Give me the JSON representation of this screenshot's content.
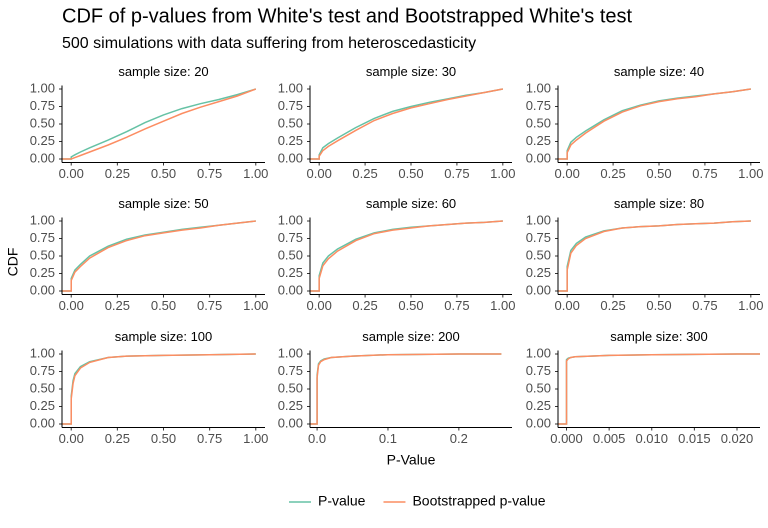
{
  "figure": {
    "title": "CDF of p-values from White's test and Bootstrapped White's test",
    "subtitle": "500 simulations with data suffering from heteroscedasticity",
    "xlabel": "P-Value",
    "ylabel": "CDF"
  },
  "chart_data": [
    {
      "type": "line",
      "title": "sample size: 20",
      "x": [
        -0.05,
        0,
        0,
        0.02,
        0.05,
        0.1,
        0.2,
        0.3,
        0.4,
        0.5,
        0.6,
        0.7,
        0.8,
        0.9,
        1.0
      ],
      "series": [
        {
          "name": "P-value",
          "color": "#66c2a5",
          "values": [
            0,
            0,
            0.03,
            0.06,
            0.1,
            0.16,
            0.27,
            0.39,
            0.52,
            0.63,
            0.72,
            0.79,
            0.85,
            0.92,
            1.0
          ]
        },
        {
          "name": "Bootstrapped p-value",
          "color": "#fc8d62",
          "values": [
            0,
            0,
            0.0,
            0.02,
            0.05,
            0.1,
            0.2,
            0.31,
            0.43,
            0.54,
            0.65,
            0.74,
            0.82,
            0.9,
            1.0
          ]
        }
      ],
      "xlim": [
        -0.05,
        1.05
      ],
      "ylim": [
        -0.05,
        1.05
      ],
      "xticks": [
        {
          "value": 0,
          "label": "0.00"
        },
        {
          "value": 0.25,
          "label": "0.25"
        },
        {
          "value": 0.5,
          "label": "0.50"
        },
        {
          "value": 0.75,
          "label": "0.75"
        },
        {
          "value": 1,
          "label": "1.00"
        }
      ],
      "yticks": [
        {
          "value": 0,
          "label": "0.00"
        },
        {
          "value": 0.25,
          "label": "0.25"
        },
        {
          "value": 0.5,
          "label": "0.50"
        },
        {
          "value": 0.75,
          "label": "0.75"
        },
        {
          "value": 1,
          "label": "1.00"
        }
      ]
    },
    {
      "type": "line",
      "title": "sample size: 30",
      "x": [
        -0.05,
        0,
        0,
        0.02,
        0.05,
        0.1,
        0.2,
        0.3,
        0.4,
        0.5,
        0.6,
        0.7,
        0.8,
        0.9,
        1.0
      ],
      "series": [
        {
          "name": "P-value",
          "color": "#66c2a5",
          "values": [
            0,
            0,
            0.06,
            0.16,
            0.22,
            0.3,
            0.45,
            0.58,
            0.68,
            0.75,
            0.81,
            0.86,
            0.91,
            0.95,
            1.0
          ]
        },
        {
          "name": "Bootstrapped p-value",
          "color": "#fc8d62",
          "values": [
            0,
            0,
            0.04,
            0.12,
            0.18,
            0.26,
            0.41,
            0.55,
            0.65,
            0.73,
            0.79,
            0.85,
            0.9,
            0.95,
            1.0
          ]
        }
      ],
      "xlim": [
        -0.05,
        1.05
      ],
      "ylim": [
        -0.05,
        1.05
      ],
      "xticks": [
        {
          "value": 0,
          "label": "0.00"
        },
        {
          "value": 0.25,
          "label": "0.25"
        },
        {
          "value": 0.5,
          "label": "0.50"
        },
        {
          "value": 0.75,
          "label": "0.75"
        },
        {
          "value": 1,
          "label": "1.00"
        }
      ],
      "yticks": [
        {
          "value": 0,
          "label": "0.00"
        },
        {
          "value": 0.25,
          "label": "0.25"
        },
        {
          "value": 0.5,
          "label": "0.50"
        },
        {
          "value": 0.75,
          "label": "0.75"
        },
        {
          "value": 1,
          "label": "1.00"
        }
      ]
    },
    {
      "type": "line",
      "title": "sample size: 40",
      "x": [
        -0.05,
        0,
        0,
        0.02,
        0.05,
        0.1,
        0.2,
        0.3,
        0.4,
        0.5,
        0.6,
        0.7,
        0.8,
        0.9,
        1.0
      ],
      "series": [
        {
          "name": "P-value",
          "color": "#66c2a5",
          "values": [
            0,
            0,
            0.12,
            0.24,
            0.31,
            0.4,
            0.56,
            0.69,
            0.77,
            0.83,
            0.87,
            0.9,
            0.93,
            0.96,
            1.0
          ]
        },
        {
          "name": "Bootstrapped p-value",
          "color": "#fc8d62",
          "values": [
            0,
            0,
            0.09,
            0.2,
            0.27,
            0.37,
            0.54,
            0.67,
            0.76,
            0.82,
            0.86,
            0.89,
            0.93,
            0.96,
            1.0
          ]
        }
      ],
      "xlim": [
        -0.05,
        1.05
      ],
      "ylim": [
        -0.05,
        1.05
      ],
      "xticks": [
        {
          "value": 0,
          "label": "0.00"
        },
        {
          "value": 0.25,
          "label": "0.25"
        },
        {
          "value": 0.5,
          "label": "0.50"
        },
        {
          "value": 0.75,
          "label": "0.75"
        },
        {
          "value": 1,
          "label": "1.00"
        }
      ],
      "yticks": [
        {
          "value": 0,
          "label": "0.00"
        },
        {
          "value": 0.25,
          "label": "0.25"
        },
        {
          "value": 0.5,
          "label": "0.50"
        },
        {
          "value": 0.75,
          "label": "0.75"
        },
        {
          "value": 1,
          "label": "1.00"
        }
      ]
    },
    {
      "type": "line",
      "title": "sample size: 50",
      "x": [
        -0.05,
        0,
        0,
        0.02,
        0.05,
        0.1,
        0.2,
        0.3,
        0.4,
        0.5,
        0.6,
        0.7,
        0.8,
        0.9,
        1.0
      ],
      "series": [
        {
          "name": "P-value",
          "color": "#66c2a5",
          "values": [
            0,
            0,
            0.18,
            0.3,
            0.38,
            0.5,
            0.64,
            0.74,
            0.8,
            0.84,
            0.88,
            0.91,
            0.94,
            0.97,
            1.0
          ]
        },
        {
          "name": "Bootstrapped p-value",
          "color": "#fc8d62",
          "values": [
            0,
            0,
            0.15,
            0.27,
            0.35,
            0.47,
            0.62,
            0.72,
            0.79,
            0.83,
            0.87,
            0.9,
            0.94,
            0.97,
            1.0
          ]
        }
      ],
      "xlim": [
        -0.05,
        1.05
      ],
      "ylim": [
        -0.05,
        1.05
      ],
      "xticks": [
        {
          "value": 0,
          "label": "0.00"
        },
        {
          "value": 0.25,
          "label": "0.25"
        },
        {
          "value": 0.5,
          "label": "0.50"
        },
        {
          "value": 0.75,
          "label": "0.75"
        },
        {
          "value": 1,
          "label": "1.00"
        }
      ],
      "yticks": [
        {
          "value": 0,
          "label": "0.00"
        },
        {
          "value": 0.25,
          "label": "0.25"
        },
        {
          "value": 0.5,
          "label": "0.50"
        },
        {
          "value": 0.75,
          "label": "0.75"
        },
        {
          "value": 1,
          "label": "1.00"
        }
      ]
    },
    {
      "type": "line",
      "title": "sample size: 60",
      "x": [
        -0.05,
        0,
        0,
        0.02,
        0.05,
        0.1,
        0.2,
        0.3,
        0.4,
        0.5,
        0.6,
        0.7,
        0.8,
        0.9,
        1.0
      ],
      "series": [
        {
          "name": "P-value",
          "color": "#66c2a5",
          "values": [
            0,
            0,
            0.22,
            0.4,
            0.5,
            0.6,
            0.74,
            0.83,
            0.88,
            0.91,
            0.93,
            0.95,
            0.97,
            0.98,
            1.0
          ]
        },
        {
          "name": "Bootstrapped p-value",
          "color": "#fc8d62",
          "values": [
            0,
            0,
            0.18,
            0.36,
            0.46,
            0.57,
            0.72,
            0.82,
            0.87,
            0.9,
            0.93,
            0.95,
            0.97,
            0.98,
            1.0
          ]
        }
      ],
      "xlim": [
        -0.05,
        1.05
      ],
      "ylim": [
        -0.05,
        1.05
      ],
      "xticks": [
        {
          "value": 0,
          "label": "0.00"
        },
        {
          "value": 0.25,
          "label": "0.25"
        },
        {
          "value": 0.5,
          "label": "0.50"
        },
        {
          "value": 0.75,
          "label": "0.75"
        },
        {
          "value": 1,
          "label": "1.00"
        }
      ],
      "yticks": [
        {
          "value": 0,
          "label": "0.00"
        },
        {
          "value": 0.25,
          "label": "0.25"
        },
        {
          "value": 0.5,
          "label": "0.50"
        },
        {
          "value": 0.75,
          "label": "0.75"
        },
        {
          "value": 1,
          "label": "1.00"
        }
      ]
    },
    {
      "type": "line",
      "title": "sample size: 80",
      "x": [
        -0.05,
        0,
        0,
        0.02,
        0.05,
        0.1,
        0.2,
        0.3,
        0.4,
        0.5,
        0.6,
        0.7,
        0.8,
        0.9,
        1.0
      ],
      "series": [
        {
          "name": "P-value",
          "color": "#66c2a5",
          "values": [
            0,
            0,
            0.35,
            0.58,
            0.68,
            0.77,
            0.86,
            0.9,
            0.92,
            0.93,
            0.95,
            0.96,
            0.97,
            0.99,
            1.0
          ]
        },
        {
          "name": "Bootstrapped p-value",
          "color": "#fc8d62",
          "values": [
            0,
            0,
            0.3,
            0.54,
            0.65,
            0.75,
            0.85,
            0.9,
            0.92,
            0.93,
            0.95,
            0.96,
            0.97,
            0.99,
            1.0
          ]
        }
      ],
      "xlim": [
        -0.05,
        1.05
      ],
      "ylim": [
        -0.05,
        1.05
      ],
      "xticks": [
        {
          "value": 0,
          "label": "0.00"
        },
        {
          "value": 0.25,
          "label": "0.25"
        },
        {
          "value": 0.5,
          "label": "0.50"
        },
        {
          "value": 0.75,
          "label": "0.75"
        },
        {
          "value": 1,
          "label": "1.00"
        }
      ],
      "yticks": [
        {
          "value": 0,
          "label": "0.00"
        },
        {
          "value": 0.25,
          "label": "0.25"
        },
        {
          "value": 0.5,
          "label": "0.50"
        },
        {
          "value": 0.75,
          "label": "0.75"
        },
        {
          "value": 1,
          "label": "1.00"
        }
      ]
    },
    {
      "type": "line",
      "title": "sample size: 100",
      "x": [
        -0.05,
        0,
        0,
        0.01,
        0.02,
        0.05,
        0.1,
        0.2,
        0.3,
        0.5,
        0.75,
        1.0
      ],
      "series": [
        {
          "name": "P-value",
          "color": "#66c2a5",
          "values": [
            0,
            0,
            0.4,
            0.62,
            0.72,
            0.82,
            0.89,
            0.95,
            0.97,
            0.98,
            0.99,
            1.0
          ]
        },
        {
          "name": "Bootstrapped p-value",
          "color": "#fc8d62",
          "values": [
            0,
            0,
            0.36,
            0.58,
            0.69,
            0.8,
            0.88,
            0.95,
            0.97,
            0.98,
            0.99,
            1.0
          ]
        }
      ],
      "xlim": [
        -0.05,
        1.05
      ],
      "ylim": [
        -0.05,
        1.05
      ],
      "xticks": [
        {
          "value": 0,
          "label": "0.00"
        },
        {
          "value": 0.25,
          "label": "0.25"
        },
        {
          "value": 0.5,
          "label": "0.50"
        },
        {
          "value": 0.75,
          "label": "0.75"
        },
        {
          "value": 1,
          "label": "1.00"
        }
      ],
      "yticks": [
        {
          "value": 0,
          "label": "0.00"
        },
        {
          "value": 0.25,
          "label": "0.25"
        },
        {
          "value": 0.5,
          "label": "0.50"
        },
        {
          "value": 0.75,
          "label": "0.75"
        },
        {
          "value": 1,
          "label": "1.00"
        }
      ]
    },
    {
      "type": "line",
      "title": "sample size: 200",
      "x": [
        -0.01,
        0,
        0,
        0.002,
        0.005,
        0.01,
        0.02,
        0.05,
        0.1,
        0.2,
        0.26
      ],
      "series": [
        {
          "name": "P-value",
          "color": "#66c2a5",
          "values": [
            0,
            0,
            0.7,
            0.86,
            0.9,
            0.93,
            0.95,
            0.97,
            0.99,
            1.0,
            1.0
          ]
        },
        {
          "name": "Bootstrapped p-value",
          "color": "#fc8d62",
          "values": [
            0,
            0,
            0.66,
            0.84,
            0.89,
            0.92,
            0.95,
            0.97,
            0.99,
            1.0,
            1.0
          ]
        }
      ],
      "xlim": [
        -0.01,
        0.275
      ],
      "ylim": [
        -0.05,
        1.05
      ],
      "xticks": [
        {
          "value": 0,
          "label": "0.0"
        },
        {
          "value": 0.1,
          "label": "0.1"
        },
        {
          "value": 0.2,
          "label": "0.2"
        }
      ],
      "yticks": [
        {
          "value": 0,
          "label": "0.00"
        },
        {
          "value": 0.25,
          "label": "0.25"
        },
        {
          "value": 0.5,
          "label": "0.50"
        },
        {
          "value": 0.75,
          "label": "0.75"
        },
        {
          "value": 1,
          "label": "1.00"
        }
      ]
    },
    {
      "type": "line",
      "title": "sample size: 300",
      "x": [
        -0.001,
        0,
        0,
        0.0002,
        0.0005,
        0.001,
        0.005,
        0.01,
        0.02,
        0.0227
      ],
      "series": [
        {
          "name": "P-value",
          "color": "#66c2a5",
          "values": [
            0,
            0,
            0.92,
            0.94,
            0.95,
            0.96,
            0.98,
            0.99,
            1.0,
            1.0
          ]
        },
        {
          "name": "Bootstrapped p-value",
          "color": "#fc8d62",
          "values": [
            0,
            0,
            0.9,
            0.93,
            0.95,
            0.96,
            0.98,
            0.99,
            1.0,
            1.0
          ]
        }
      ],
      "xlim": [
        -0.001,
        0.0227
      ],
      "ylim": [
        -0.05,
        1.05
      ],
      "xticks": [
        {
          "value": 0,
          "label": "0.000"
        },
        {
          "value": 0.005,
          "label": "0.005"
        },
        {
          "value": 0.01,
          "label": "0.010"
        },
        {
          "value": 0.015,
          "label": "0.015"
        },
        {
          "value": 0.02,
          "label": "0.020"
        }
      ],
      "yticks": [
        {
          "value": 0,
          "label": "0.00"
        },
        {
          "value": 0.25,
          "label": "0.25"
        },
        {
          "value": 0.5,
          "label": "0.50"
        },
        {
          "value": 0.75,
          "label": "0.75"
        },
        {
          "value": 1,
          "label": "1.00"
        }
      ]
    }
  ]
}
